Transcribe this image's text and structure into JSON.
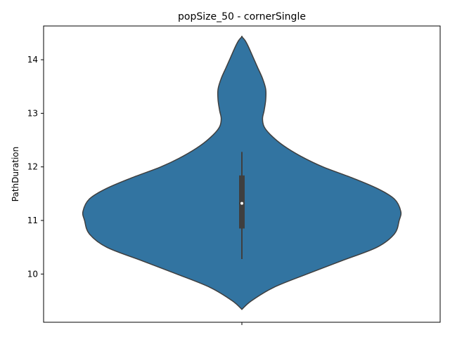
{
  "chart_data": {
    "type": "violin",
    "title": "popSize_50 - cornerSingle",
    "xlabel": "",
    "ylabel": "PathDuration",
    "ylim": [
      9.1,
      14.63
    ],
    "yticks": [
      10,
      11,
      12,
      13,
      14
    ],
    "grid": false,
    "legend": "none",
    "series": [
      {
        "fill_color": "#3274a1",
        "edge_color": "#3f3f3f",
        "density_profile": [
          {
            "y": 9.34,
            "w": 0.0
          },
          {
            "y": 9.5,
            "w": 0.06
          },
          {
            "y": 9.75,
            "w": 0.2
          },
          {
            "y": 10.0,
            "w": 0.41
          },
          {
            "y": 10.25,
            "w": 0.63
          },
          {
            "y": 10.5,
            "w": 0.85
          },
          {
            "y": 10.75,
            "w": 0.96
          },
          {
            "y": 11.0,
            "w": 0.99
          },
          {
            "y": 11.17,
            "w": 1.0
          },
          {
            "y": 11.4,
            "w": 0.96
          },
          {
            "y": 11.6,
            "w": 0.85
          },
          {
            "y": 11.8,
            "w": 0.69
          },
          {
            "y": 12.0,
            "w": 0.51
          },
          {
            "y": 12.2,
            "w": 0.37
          },
          {
            "y": 12.4,
            "w": 0.26
          },
          {
            "y": 12.6,
            "w": 0.18
          },
          {
            "y": 12.75,
            "w": 0.14
          },
          {
            "y": 12.9,
            "w": 0.13
          },
          {
            "y": 13.05,
            "w": 0.14
          },
          {
            "y": 13.25,
            "w": 0.15
          },
          {
            "y": 13.45,
            "w": 0.15
          },
          {
            "y": 13.65,
            "w": 0.13
          },
          {
            "y": 13.85,
            "w": 0.1
          },
          {
            "y": 14.05,
            "w": 0.07
          },
          {
            "y": 14.25,
            "w": 0.04
          },
          {
            "y": 14.36,
            "w": 0.02
          },
          {
            "y": 14.43,
            "w": 0.0
          }
        ],
        "box": {
          "whisker_low": 10.28,
          "q1": 10.85,
          "median": 11.32,
          "q3": 11.84,
          "whisker_high": 12.28
        }
      }
    ]
  }
}
